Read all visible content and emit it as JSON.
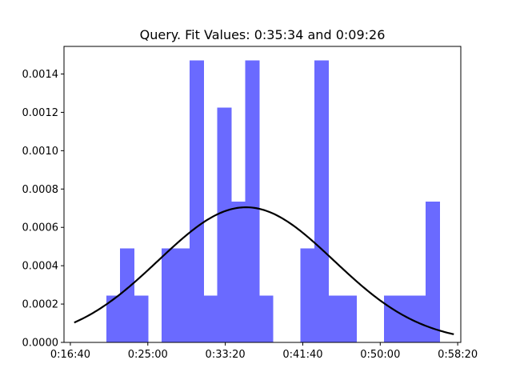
{
  "chart_data": {
    "type": "bar",
    "title": "Query. Fit Values: 0:35:34 and 0:09:26",
    "xlabel": "",
    "ylabel": "",
    "xlim_seconds": [
      959,
      3520
    ],
    "ylim": [
      0,
      0.001544
    ],
    "x_ticks": [
      {
        "value": 1000,
        "label": "0:16:40"
      },
      {
        "value": 1500,
        "label": "0:25:00"
      },
      {
        "value": 2000,
        "label": "0:33:20"
      },
      {
        "value": 2500,
        "label": "0:41:40"
      },
      {
        "value": 3000,
        "label": "0:50:00"
      },
      {
        "value": 3500,
        "label": "0:58:20"
      }
    ],
    "y_ticks": [
      {
        "value": 0.0,
        "label": "0.0000"
      },
      {
        "value": 0.0002,
        "label": "0.0002"
      },
      {
        "value": 0.0004,
        "label": "0.0004"
      },
      {
        "value": 0.0006,
        "label": "0.0006"
      },
      {
        "value": 0.0008,
        "label": "0.0008"
      },
      {
        "value": 0.001,
        "label": "0.0010"
      },
      {
        "value": 0.0012,
        "label": "0.0012"
      },
      {
        "value": 0.0014,
        "label": "0.0014"
      }
    ],
    "bar_color": "#6a6aff",
    "curve_color": "#000000",
    "bins": [
      {
        "x0": 1232,
        "x1": 1321,
        "value": 0.000245
      },
      {
        "x0": 1321,
        "x1": 1410,
        "value": 0.00049
      },
      {
        "x0": 1410,
        "x1": 1500,
        "value": 0.000245
      },
      {
        "x0": 1500,
        "x1": 1590,
        "value": 0.0
      },
      {
        "x0": 1590,
        "x1": 1680,
        "value": 0.00049
      },
      {
        "x0": 1680,
        "x1": 1770,
        "value": 0.00049
      },
      {
        "x0": 1770,
        "x1": 1859,
        "value": 0.00147
      },
      {
        "x0": 1859,
        "x1": 1949,
        "value": 0.000245
      },
      {
        "x0": 1949,
        "x1": 2038,
        "value": 0.001225
      },
      {
        "x0": 2038,
        "x1": 2128,
        "value": 0.000735
      },
      {
        "x0": 2128,
        "x1": 2218,
        "value": 0.00147
      },
      {
        "x0": 2218,
        "x1": 2307,
        "value": 0.000245
      },
      {
        "x0": 2307,
        "x1": 2397,
        "value": 0.0
      },
      {
        "x0": 2397,
        "x1": 2486,
        "value": 0.0
      },
      {
        "x0": 2486,
        "x1": 2576,
        "value": 0.00049
      },
      {
        "x0": 2576,
        "x1": 2666,
        "value": 0.00147
      },
      {
        "x0": 2666,
        "x1": 2755,
        "value": 0.000245
      },
      {
        "x0": 2755,
        "x1": 2845,
        "value": 0.000245
      },
      {
        "x0": 2845,
        "x1": 2934,
        "value": 0.0
      },
      {
        "x0": 2934,
        "x1": 3024,
        "value": 0.0
      },
      {
        "x0": 3024,
        "x1": 3114,
        "value": 0.000245
      },
      {
        "x0": 3114,
        "x1": 3203,
        "value": 0.000245
      },
      {
        "x0": 3203,
        "x1": 3293,
        "value": 0.000245
      },
      {
        "x0": 3293,
        "x1": 3383,
        "value": 0.000735
      }
    ],
    "fit": {
      "mean_seconds": 2134,
      "std_seconds": 566,
      "x_start": 1025,
      "x_end": 3475
    }
  }
}
